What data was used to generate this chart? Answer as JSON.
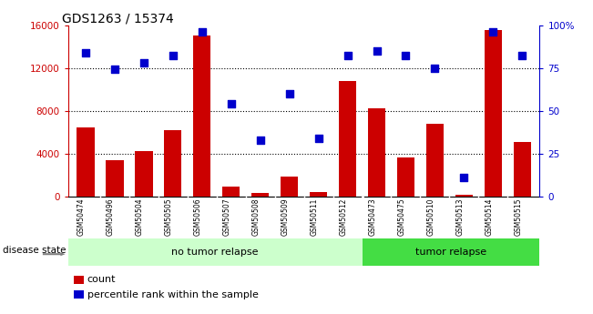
{
  "title": "GDS1263 / 15374",
  "samples": [
    "GSM50474",
    "GSM50496",
    "GSM50504",
    "GSM50505",
    "GSM50506",
    "GSM50507",
    "GSM50508",
    "GSM50509",
    "GSM50511",
    "GSM50512",
    "GSM50473",
    "GSM50475",
    "GSM50510",
    "GSM50513",
    "GSM50514",
    "GSM50515"
  ],
  "counts": [
    6400,
    3400,
    4200,
    6200,
    15000,
    900,
    300,
    1800,
    400,
    10800,
    8200,
    3600,
    6800,
    100,
    15500,
    5100
  ],
  "percentiles": [
    84,
    74,
    78,
    82,
    96,
    54,
    33,
    60,
    34,
    82,
    85,
    82,
    75,
    11,
    96,
    82
  ],
  "n_no_tumor": 10,
  "bar_color": "#cc0000",
  "dot_color": "#0000cc",
  "no_tumor_color": "#ccffcc",
  "tumor_color": "#44dd44",
  "xtick_bg": "#c8c8c8",
  "ylim_left": [
    0,
    16000
  ],
  "ylim_right": [
    0,
    100
  ],
  "yticks_left": [
    0,
    4000,
    8000,
    12000,
    16000
  ],
  "yticks_right": [
    0,
    25,
    50,
    75,
    100
  ],
  "ytick_labels_right": [
    "0",
    "25",
    "50",
    "75",
    "100%"
  ],
  "fig_bg": "#ffffff"
}
